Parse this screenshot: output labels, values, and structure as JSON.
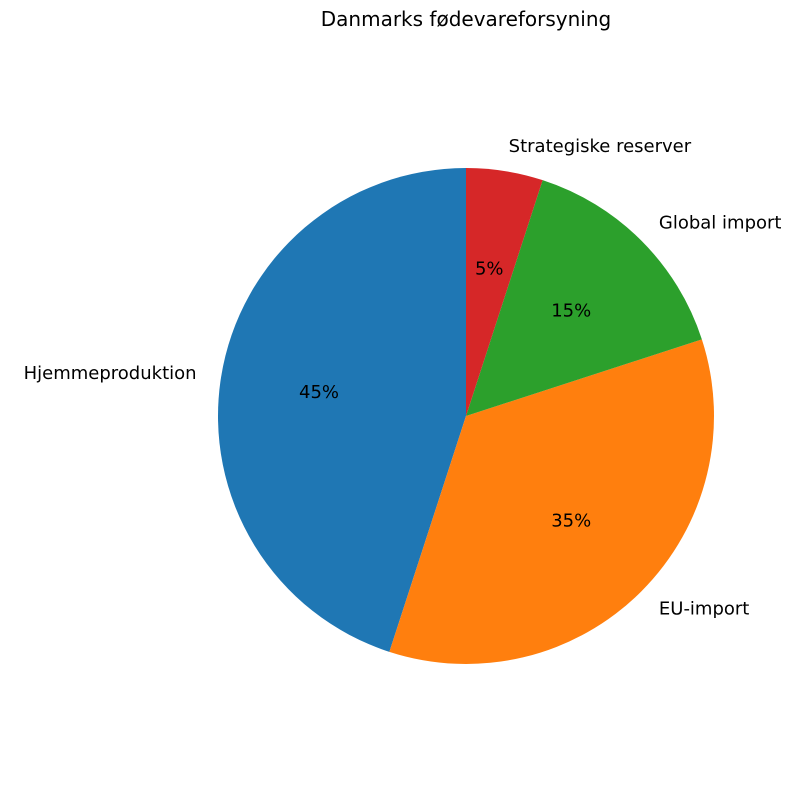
{
  "chart_data": {
    "type": "pie",
    "title": "Danmarks fødevareforsyning",
    "categories": [
      "Hjemmeproduktion",
      "EU-import",
      "Global import",
      "Strategiske reserver"
    ],
    "values": [
      45,
      35,
      15,
      5
    ],
    "value_labels": [
      "45%",
      "35%",
      "15%",
      "5%"
    ],
    "colors": [
      "#1f77b4",
      "#ff7f0e",
      "#2ca02c",
      "#d62728"
    ],
    "start_angle_deg": 90,
    "direction": "counterclockwise",
    "legend": "none"
  }
}
